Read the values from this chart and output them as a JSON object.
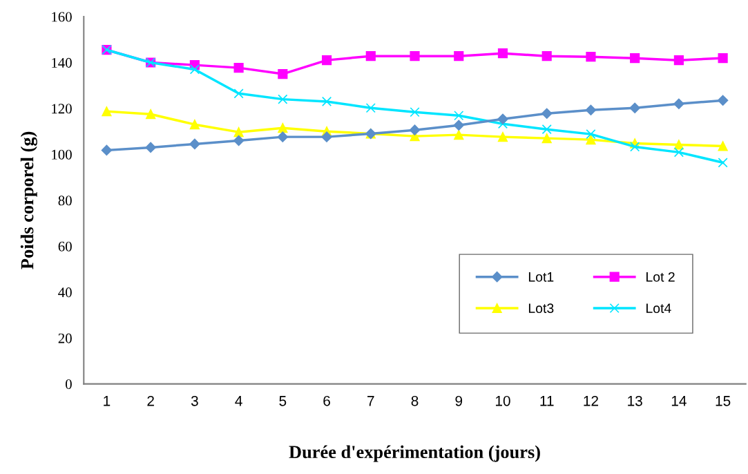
{
  "chart_data": {
    "type": "line",
    "xlabel": "Durée d'expérimentation (jours)",
    "ylabel": "Poids corporel (g)",
    "categories": [
      "1",
      "2",
      "3",
      "4",
      "5",
      "6",
      "7",
      "8",
      "9",
      "10",
      "11",
      "12",
      "13",
      "14",
      "15"
    ],
    "ylim": [
      0,
      160
    ],
    "yticks": [
      0,
      20,
      40,
      60,
      80,
      100,
      120,
      140,
      160
    ],
    "grid": false,
    "legend": "bottom right",
    "series": [
      {
        "name": "Lot1",
        "color": "#5b8fc9",
        "marker": "diamond",
        "values": [
          101.8,
          103,
          104.5,
          106,
          107.6,
          107.6,
          109,
          110.6,
          112.7,
          115.4,
          117.8,
          119.3,
          120.2,
          122,
          123.5
        ]
      },
      {
        "name": "Lot 2",
        "color": "#ff00ff",
        "marker": "square",
        "values": [
          145.5,
          140,
          138.9,
          137.7,
          135,
          141,
          142.8,
          142.8,
          142.8,
          144,
          142.8,
          142.5,
          141.9,
          141,
          141.9
        ]
      },
      {
        "name": "Lot3",
        "color": "#ffff00",
        "marker": "triangle",
        "values": [
          118.7,
          117.5,
          113,
          109.7,
          111.5,
          110,
          109,
          107.9,
          108.5,
          107.6,
          107,
          106.4,
          104.8,
          104.2,
          103.6
        ]
      },
      {
        "name": "Lot4",
        "color": "#00e5ff",
        "marker": "cross",
        "values": [
          145.5,
          140,
          137,
          126.5,
          124,
          123,
          120.2,
          118.4,
          116.9,
          113.3,
          110.9,
          108.8,
          103.3,
          100.9,
          96.4
        ]
      }
    ]
  }
}
